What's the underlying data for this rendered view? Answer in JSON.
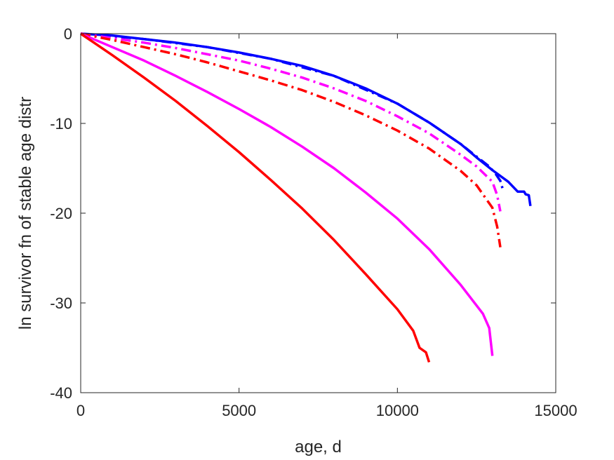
{
  "chart_data": {
    "type": "line",
    "xlabel": "age, d",
    "ylabel": "ln survivor fn of stable age distr",
    "xlim": [
      0,
      15000
    ],
    "ylim": [
      -40,
      0
    ],
    "xticks": [
      0,
      5000,
      10000,
      15000
    ],
    "yticks": [
      0,
      -10,
      -20,
      -30,
      -40
    ],
    "xtick_labels": [
      "0",
      "5000",
      "10000",
      "15000"
    ],
    "ytick_labels": [
      "0",
      "-10",
      "-20",
      "-30",
      "-40"
    ],
    "grid": false,
    "series": [
      {
        "color": "#0000ff",
        "style": "solid",
        "x": [
          0,
          1000,
          2000,
          3000,
          4000,
          5000,
          6000,
          7000,
          8000,
          9000,
          10000,
          11000,
          12000,
          12500,
          13000,
          13500,
          13800,
          14000,
          14050,
          14150,
          14200
        ],
        "y": [
          0,
          -0.2,
          -0.6,
          -1.0,
          -1.5,
          -2.1,
          -2.8,
          -3.6,
          -4.7,
          -6.1,
          -7.8,
          -9.9,
          -12.3,
          -13.8,
          -15.2,
          -16.5,
          -17.6,
          -17.6,
          -17.9,
          -18.0,
          -19.2
        ]
      },
      {
        "color": "#0000ff",
        "style": "dashdot",
        "x": [
          0,
          2000,
          4000,
          6000,
          8000,
          10000,
          11000,
          12000,
          12500,
          12900,
          13100,
          13250,
          13350
        ],
        "y": [
          0,
          -0.6,
          -1.5,
          -2.8,
          -4.7,
          -7.8,
          -9.9,
          -12.3,
          -13.7,
          -14.8,
          -15.6,
          -16.4,
          -17.6
        ]
      },
      {
        "color": "#ff00ff",
        "style": "dashdot",
        "x": [
          0,
          1000,
          2000,
          3000,
          4000,
          5000,
          6000,
          7000,
          8000,
          9000,
          10000,
          11000,
          12000,
          12500,
          13000,
          13150,
          13250
        ],
        "y": [
          0,
          -0.5,
          -1.0,
          -1.6,
          -2.3,
          -3.0,
          -3.9,
          -4.9,
          -6.1,
          -7.5,
          -9.2,
          -11.1,
          -13.5,
          -14.8,
          -16.5,
          -18.0,
          -19.8
        ]
      },
      {
        "color": "#ff0000",
        "style": "dashdot",
        "x": [
          0,
          1000,
          2000,
          3000,
          4000,
          5000,
          6000,
          7000,
          8000,
          9000,
          10000,
          11000,
          12000,
          12500,
          13000,
          13150,
          13250
        ],
        "y": [
          0,
          -0.7,
          -1.5,
          -2.3,
          -3.2,
          -4.2,
          -5.2,
          -6.3,
          -7.6,
          -9.1,
          -10.8,
          -12.8,
          -15.3,
          -16.9,
          -19.4,
          -21.5,
          -23.8
        ]
      },
      {
        "color": "#ff00ff",
        "style": "solid",
        "x": [
          0,
          1000,
          2000,
          3000,
          4000,
          5000,
          6000,
          7000,
          8000,
          9000,
          10000,
          11000,
          12000,
          12700,
          12900,
          13000
        ],
        "y": [
          0,
          -1.5,
          -3.0,
          -4.7,
          -6.5,
          -8.4,
          -10.4,
          -12.6,
          -15.0,
          -17.7,
          -20.6,
          -24.0,
          -28.0,
          -31.2,
          -32.8,
          -35.9
        ]
      },
      {
        "color": "#ff0000",
        "style": "solid",
        "x": [
          0,
          1000,
          2000,
          3000,
          4000,
          5000,
          6000,
          7000,
          8000,
          9000,
          10000,
          10500,
          10700,
          10900,
          11000
        ],
        "y": [
          0,
          -2.4,
          -4.9,
          -7.5,
          -10.3,
          -13.2,
          -16.3,
          -19.5,
          -23.0,
          -26.8,
          -30.7,
          -33.1,
          -35.0,
          -35.5,
          -36.6
        ]
      }
    ]
  }
}
